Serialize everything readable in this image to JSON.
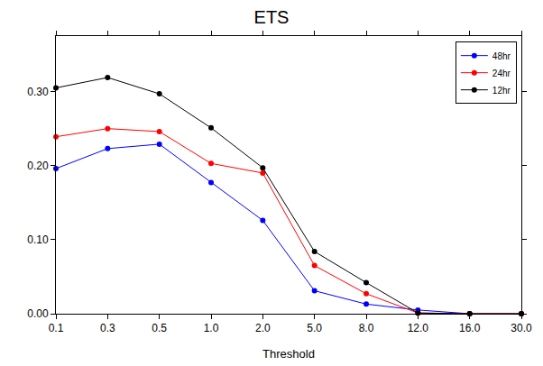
{
  "chart_data": {
    "type": "line",
    "title": "ETS",
    "x_label": "Threshold",
    "categories": [
      "0.1",
      "0.3",
      "0.5",
      "1.0",
      "2.0",
      "5.0",
      "8.0",
      "12.0",
      "16.0",
      "30.0"
    ],
    "series": [
      {
        "name": "48hr",
        "color": "#0000ff",
        "marker": "circle",
        "values": [
          0.196,
          0.223,
          0.229,
          0.177,
          0.126,
          0.031,
          0.013,
          0.005,
          0.0,
          0.0
        ]
      },
      {
        "name": "24hr",
        "color": "#ff0000",
        "marker": "circle",
        "values": [
          0.239,
          0.25,
          0.246,
          0.203,
          0.19,
          0.065,
          0.027,
          0.001,
          0.0,
          0.0
        ]
      },
      {
        "name": "12hr",
        "color": "#000000",
        "marker": "circle",
        "values": [
          0.305,
          0.319,
          0.297,
          0.251,
          0.197,
          0.084,
          0.042,
          0.001,
          0.0,
          0.0
        ]
      }
    ],
    "ylim": [
      0,
      0.375
    ],
    "yticks": [
      {
        "value": 0,
        "label": "0.00"
      },
      {
        "value": 0.1,
        "label": "0.10"
      },
      {
        "value": 0.2,
        "label": "0.20"
      },
      {
        "value": 0.3,
        "label": "0.30"
      }
    ],
    "grid": false,
    "legend": "top right"
  }
}
